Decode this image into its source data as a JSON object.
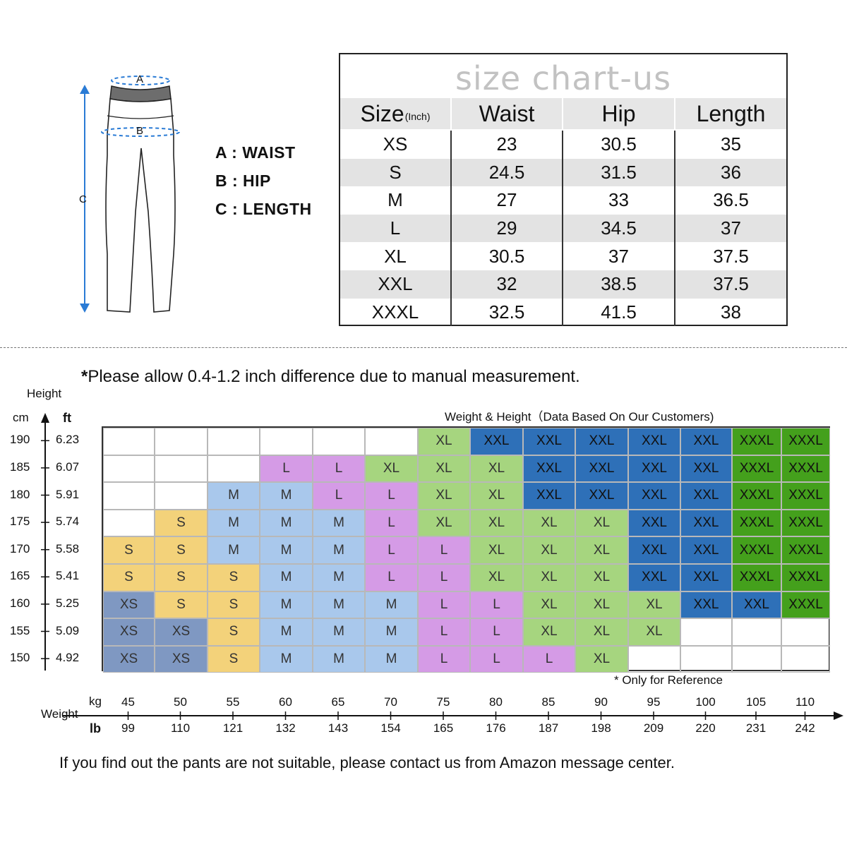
{
  "diagram": {
    "label_a": "A",
    "label_b": "B",
    "label_c": "C",
    "legend": [
      "A : WAIST",
      "B : HIP",
      "C : LENGTH"
    ]
  },
  "chart_data": [
    {
      "type": "table",
      "title": "size chart-us",
      "header": {
        "size": "Size",
        "unit": "(Inch)",
        "columns": [
          "Waist",
          "Hip",
          "Length"
        ]
      },
      "rows": [
        [
          "XS",
          "23",
          "30.5",
          "35"
        ],
        [
          "S",
          "24.5",
          "31.5",
          "36"
        ],
        [
          "M",
          "27",
          "33",
          "36.5"
        ],
        [
          "L",
          "29",
          "34.5",
          "37"
        ],
        [
          "XL",
          "30.5",
          "37",
          "37.5"
        ],
        [
          "XXL",
          "32",
          "38.5",
          "37.5"
        ],
        [
          "XXXL",
          "32.5",
          "41.5",
          "38"
        ]
      ]
    },
    {
      "type": "heatmap",
      "title": "Weight & Height（Data Based On Our Customers)",
      "y_label": "Height",
      "y_unit_cm": "cm",
      "y_unit_ft": "ft",
      "y_cm": [
        "190",
        "185",
        "180",
        "175",
        "170",
        "165",
        "160",
        "155",
        "150"
      ],
      "y_ft": [
        "6.23",
        "6.07",
        "5.91",
        "5.74",
        "5.58",
        "5.41",
        "5.25",
        "5.09",
        "4.92"
      ],
      "x_label": "Weight",
      "x_unit_kg": "kg",
      "x_unit_lb": "lb",
      "x_kg": [
        "45",
        "50",
        "55",
        "60",
        "65",
        "70",
        "75",
        "80",
        "85",
        "90",
        "95",
        "100",
        "105",
        "110"
      ],
      "x_lb": [
        "99",
        "110",
        "121",
        "132",
        "143",
        "154",
        "165",
        "176",
        "187",
        "198",
        "209",
        "220",
        "231",
        "242"
      ],
      "cells": [
        [
          "",
          "",
          "",
          "",
          "",
          "",
          "XL",
          "XXL",
          "XXL",
          "XXL",
          "XXL",
          "XXL",
          "XXXL",
          "XXXL"
        ],
        [
          "",
          "",
          "",
          "L",
          "L",
          "XL",
          "XL",
          "XL",
          "XXL",
          "XXL",
          "XXL",
          "XXL",
          "XXXL",
          "XXXL"
        ],
        [
          "",
          "",
          "M",
          "M",
          "L",
          "L",
          "XL",
          "XL",
          "XXL",
          "XXL",
          "XXL",
          "XXL",
          "XXXL",
          "XXXL"
        ],
        [
          "",
          "S",
          "M",
          "M",
          "M",
          "L",
          "XL",
          "XL",
          "XL",
          "XL",
          "XXL",
          "XXL",
          "XXXL",
          "XXXL"
        ],
        [
          "S",
          "S",
          "M",
          "M",
          "M",
          "L",
          "L",
          "XL",
          "XL",
          "XL",
          "XXL",
          "XXL",
          "XXXL",
          "XXXL"
        ],
        [
          "S",
          "S",
          "S",
          "M",
          "M",
          "L",
          "L",
          "XL",
          "XL",
          "XL",
          "XXL",
          "XXL",
          "XXXL",
          "XXXL"
        ],
        [
          "XS",
          "S",
          "S",
          "M",
          "M",
          "M",
          "L",
          "L",
          "XL",
          "XL",
          "XL",
          "XXL",
          "XXL",
          "XXXL"
        ],
        [
          "XS",
          "XS",
          "S",
          "M",
          "M",
          "M",
          "L",
          "L",
          "XL",
          "XL",
          "XL",
          "",
          "",
          ""
        ],
        [
          "XS",
          "XS",
          "S",
          "M",
          "M",
          "M",
          "L",
          "L",
          "L",
          "XL",
          "",
          "",
          "",
          ""
        ]
      ],
      "colors": {
        "XS": "#7f98c2",
        "S": "#f3d27a",
        "M": "#a9c8ec",
        "L": "#d59be6",
        "XL": "#a6d57f",
        "XXL": "#2e70b8",
        "XXXL": "#44a01c"
      }
    }
  ],
  "note": "Please allow 0.4-1.2 inch difference due to manual measurement.",
  "note_star": "*",
  "reference_note": "* Only for Reference",
  "footer": "If you find out the pants are not suitable, please contact us from Amazon message center."
}
